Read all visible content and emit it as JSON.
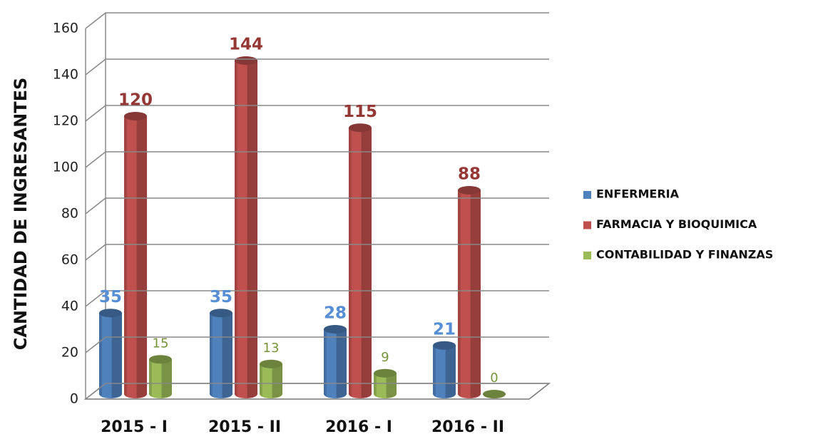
{
  "chart_data": {
    "type": "bar3d",
    "y_label": "CANTIDAD DE INGRESANTES",
    "categories": [
      "2015 - I",
      "2015 - II",
      "2016 - I",
      "2016 - II"
    ],
    "series": [
      {
        "name": "ENFERMERIA",
        "color": "#4f81bd",
        "label_color": "#558ed5",
        "values": [
          35,
          35,
          28,
          21
        ]
      },
      {
        "name": "FARMACIA Y BIOQUIMICA",
        "color": "#c0504d",
        "label_color": "#953735",
        "values": [
          120,
          144,
          115,
          88
        ]
      },
      {
        "name": "CONTABILIDAD Y FINANZAS",
        "color": "#9bbb59",
        "label_color": "#77933c",
        "values": [
          15,
          13,
          9,
          0
        ]
      }
    ],
    "ylim": [
      0,
      160
    ],
    "yticks": [
      0,
      20,
      40,
      60,
      80,
      100,
      120,
      140,
      160
    ],
    "grid": true
  }
}
